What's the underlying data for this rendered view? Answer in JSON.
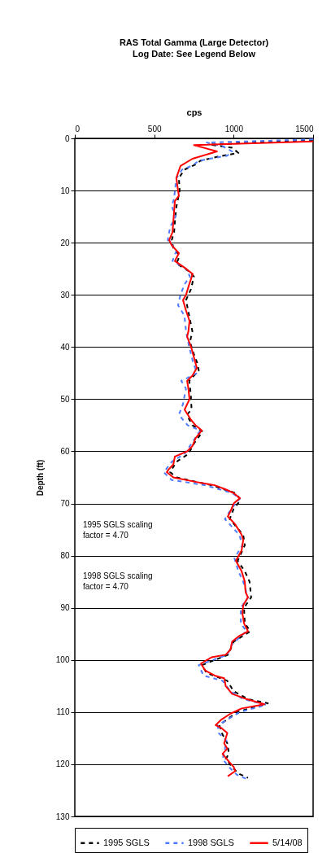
{
  "chart_data": {
    "type": "line",
    "title": "RAS Total Gamma (Large Detector)",
    "subtitle": "Log Date: See Legend Below",
    "xlabel": "cps",
    "ylabel": "Depth (ft)",
    "xlim": [
      0,
      1500
    ],
    "xticks": [
      0,
      500,
      1000,
      1500
    ],
    "ylim": [
      130,
      0
    ],
    "yticks": [
      0,
      10,
      20,
      30,
      40,
      50,
      60,
      70,
      80,
      90,
      100,
      110,
      120,
      130
    ],
    "grid": "y",
    "legend": "bottom",
    "marker": "none",
    "annotations": [
      "1995 SGLS scaling\nfactor = 4.70",
      "1998 SGLS scaling\nfactor = 4.70"
    ],
    "series": [
      {
        "name": "1995 SGLS",
        "color": "#000000",
        "line_style": "dashed",
        "x": [
          1500,
          850,
          990,
          1030,
          900,
          790,
          760,
          690,
          655,
          660,
          640,
          630,
          625,
          610,
          620,
          660,
          640,
          720,
          750,
          730,
          700,
          720,
          740,
          725,
          745,
          770,
          780,
          720,
          730,
          735,
          705,
          740,
          805,
          750,
          715,
          640,
          600,
          640,
          860,
          1010,
          1045,
          1000,
          975,
          1060,
          1070,
          1025,
          1070,
          1100,
          1110,
          1065,
          1070,
          1105,
          1000,
          965,
          800,
          830,
          960,
          1000,
          1090,
          1215,
          1020,
          910,
          925,
          960,
          970,
          950,
          990,
          1030,
          1090
        ],
        "values": [
          0.3,
          1.2,
          1.8,
          2.8,
          3.5,
          4.3,
          5,
          6,
          7.6,
          10,
          13,
          16,
          18,
          19.5,
          21,
          22.5,
          24,
          25.5,
          26.5,
          29,
          31,
          34,
          37,
          39,
          41,
          43,
          44.5,
          46.5,
          49,
          52,
          53,
          55,
          56.2,
          58.5,
          60.5,
          62,
          64,
          65,
          66.5,
          68,
          69.3,
          71,
          73,
          76,
          78,
          81,
          83,
          85,
          88,
          90,
          93,
          94.5,
          96.5,
          99,
          101,
          102.5,
          104,
          106,
          107.5,
          108.3,
          110,
          112.5,
          114,
          116,
          118,
          119,
          120.5,
          121.8,
          122.6
        ]
      },
      {
        "name": "1998 SGLS",
        "color": "#4f7cff",
        "line_style": "dashed",
        "x": [
          1500,
          830,
          930,
          990,
          960,
          780,
          740,
          675,
          640,
          630,
          625,
          610,
          635,
          600,
          585,
          640,
          615,
          700,
          725,
          690,
          665,
          650,
          690,
          700,
          720,
          745,
          770,
          670,
          700,
          680,
          655,
          710,
          790,
          735,
          690,
          610,
          560,
          610,
          820,
          990,
          1040,
          985,
          945,
          1035,
          1055,
          1005,
          1030,
          1060,
          1090,
          1045,
          1045,
          1080,
          990,
          960,
          780,
          810,
          930,
          980,
          1060,
          1205,
          1040,
          900,
          905,
          955,
          945,
          930,
          970,
          1020,
          1080
        ],
        "values": [
          0.2,
          0.8,
          1.5,
          2.5,
          3.3,
          4.3,
          5.2,
          6,
          7.6,
          10,
          11.5,
          13,
          15,
          17,
          19.5,
          21.5,
          23.5,
          25,
          26.5,
          28,
          30,
          32,
          34,
          37,
          40,
          43,
          45,
          46.5,
          48,
          51,
          53,
          55,
          56,
          58.5,
          60.5,
          62,
          64,
          65.5,
          66.5,
          68,
          69,
          71,
          73,
          76,
          78,
          80.5,
          83,
          85,
          88,
          90,
          93,
          94.5,
          97,
          99,
          101,
          103,
          104,
          106,
          107.5,
          108.6,
          110,
          112.5,
          114,
          115.5,
          117,
          119,
          120.5,
          122,
          122.8
        ]
      },
      {
        "name": "5/14/08",
        "color": "#ff0000",
        "line_style": "solid",
        "x": [
          1500,
          750,
          895,
          741,
          665,
          639,
          650,
          655,
          630,
          625,
          620,
          615,
          594,
          610,
          655,
          630,
          700,
          742,
          720,
          700,
          681,
          700,
          722,
          715,
          707,
          732,
          750,
          768,
          740,
          707,
          715,
          722,
          691,
          732,
          760,
          799,
          760,
          740,
          707,
          630,
          620,
          590,
          579,
          620,
          750,
          880,
          950,
          1000,
          1039,
          1000,
          980,
          963,
          1010,
          1050,
          1060,
          1050,
          1014,
          1050,
          1070,
          1075,
          1090,
          1060,
          1055,
          1065,
          1090,
          1030,
          990,
          980,
          950,
          860,
          794,
          820,
          880,
          940,
          950,
          990,
          1080,
          1193,
          1050,
          980,
          920,
          886,
          920,
          960,
          940,
          960,
          930,
          970,
          1000,
          1010,
          963
        ],
        "values": [
          0.6,
          1.3,
          2.5,
          3.9,
          5.3,
          7.6,
          10,
          11,
          12,
          14,
          16,
          18,
          19.5,
          20.5,
          22,
          23.5,
          25,
          26,
          28,
          30,
          31,
          33,
          35,
          37,
          38,
          40,
          42,
          44,
          45.5,
          46.5,
          48,
          50,
          52,
          54,
          55,
          56,
          57.5,
          59,
          60,
          61,
          62.5,
          63.5,
          64,
          65,
          65.8,
          66.5,
          67.3,
          68,
          69,
          70,
          71.5,
          72.5,
          74,
          76,
          77,
          79,
          81,
          83,
          85,
          87,
          88,
          89.5,
          91,
          93,
          94.5,
          95.5,
          96.5,
          98,
          99,
          99.5,
          100.7,
          102,
          103,
          103.5,
          105,
          106.5,
          107.5,
          108.5,
          109.3,
          110.3,
          111.5,
          112.5,
          113,
          114,
          116,
          117,
          118,
          119.5,
          120.5,
          121.3,
          122.3
        ]
      }
    ]
  }
}
